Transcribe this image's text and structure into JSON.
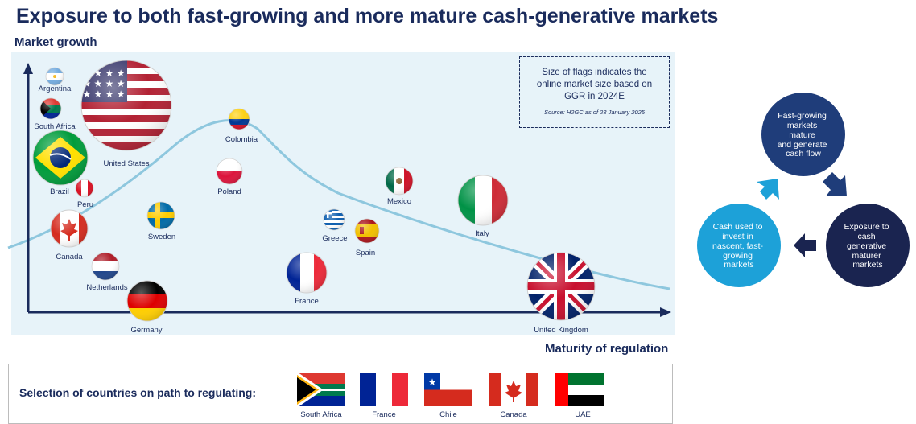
{
  "title": "Exposure to both fast-growing and more mature cash-generative markets",
  "chart": {
    "y_axis_label": "Market growth",
    "x_axis_label": "Maturity of regulation",
    "note": "Size of flags indicates the online market size based on GGR in 2024E",
    "source": "Source: H2GC as of 23 January 2025",
    "countries": [
      {
        "name": "Argentina",
        "flag": "argentina-flag"
      },
      {
        "name": "South Africa",
        "flag": "south-africa-flag"
      },
      {
        "name": "United States",
        "flag": "usa-flag"
      },
      {
        "name": "Brazil",
        "flag": "brazil-flag"
      },
      {
        "name": "Peru",
        "flag": "peru-flag"
      },
      {
        "name": "Canada",
        "flag": "canada-flag"
      },
      {
        "name": "Netherlands",
        "flag": "netherlands-flag"
      },
      {
        "name": "Germany",
        "flag": "germany-flag"
      },
      {
        "name": "Sweden",
        "flag": "sweden-flag"
      },
      {
        "name": "Colombia",
        "flag": "colombia-flag"
      },
      {
        "name": "Poland",
        "flag": "poland-flag"
      },
      {
        "name": "France",
        "flag": "france-flag"
      },
      {
        "name": "Greece",
        "flag": "greece-flag"
      },
      {
        "name": "Spain",
        "flag": "spain-flag"
      },
      {
        "name": "Mexico",
        "flag": "mexico-flag"
      },
      {
        "name": "Italy",
        "flag": "italy-flag"
      },
      {
        "name": "United Kingdom",
        "flag": "uk-flag"
      }
    ]
  },
  "cycle": {
    "top": "Fast-growing markets mature and generate cash flow",
    "right": "Exposure to cash generative maturer markets",
    "left": "Cash used to invest in nascent, fast-growing markets",
    "colors": {
      "top": "#1f3d7a",
      "right": "#1a2450",
      "left": "#1da1d8"
    }
  },
  "regulating": {
    "label": "Selection of countries on path to regulating:",
    "countries": [
      "South Africa",
      "France",
      "Chile",
      "Canada",
      "UAE"
    ]
  }
}
